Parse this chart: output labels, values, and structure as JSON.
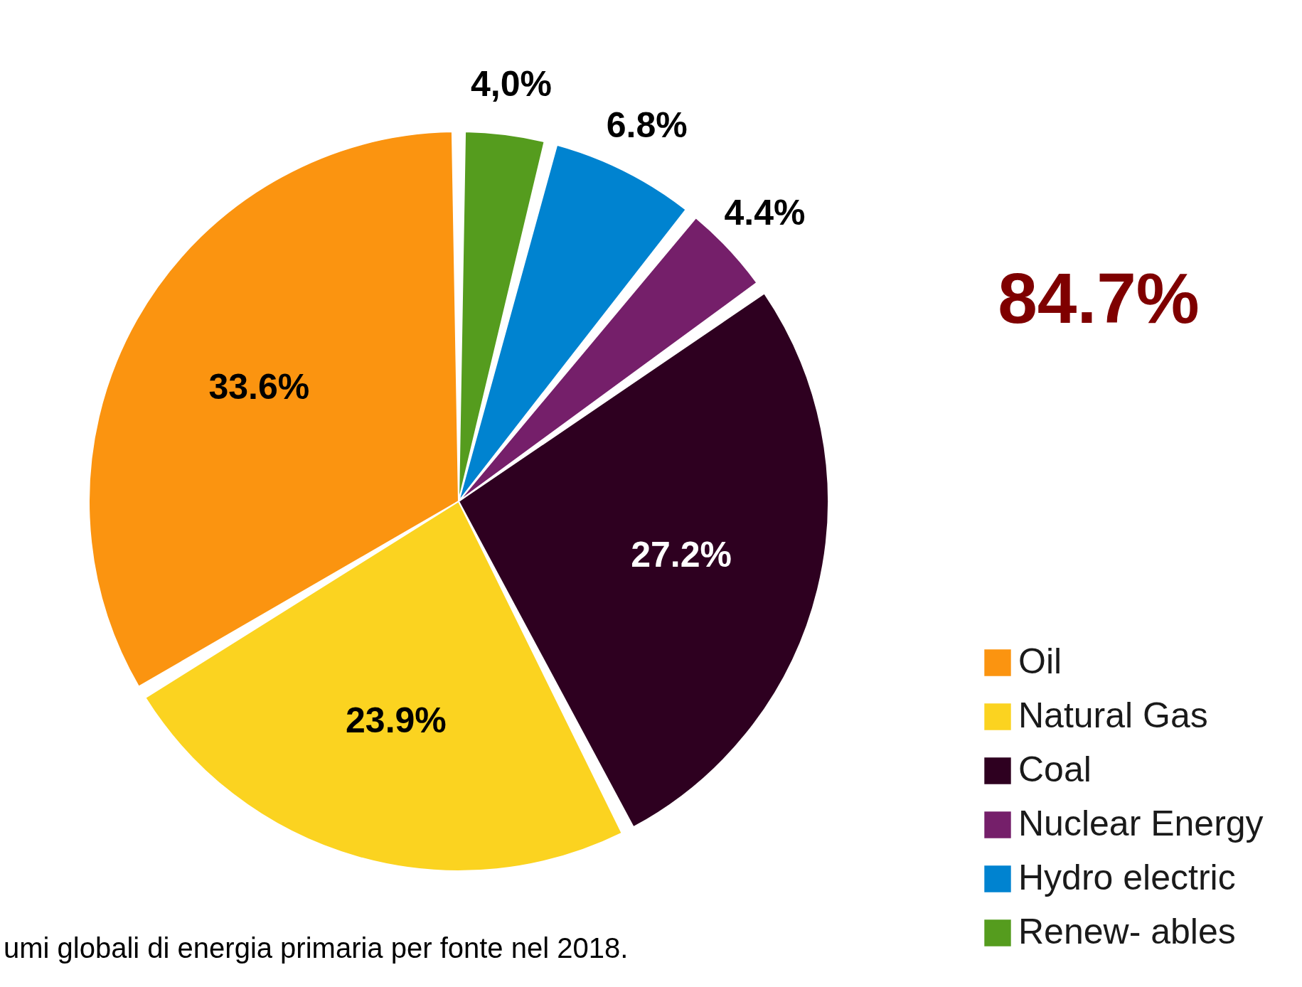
{
  "chart_data": {
    "type": "pie",
    "categories": [
      "Oil",
      "Natural Gas",
      "Coal",
      "Nuclear Energy",
      "Hydro electric",
      "Renew- ables"
    ],
    "values": [
      33.6,
      23.9,
      27.2,
      4.4,
      6.8,
      4.0
    ],
    "colors": [
      "#fb9410",
      "#fbd320",
      "#2e0020",
      "#751f6a",
      "#0083d0",
      "#559c1e"
    ],
    "value_labels": [
      "33.6%",
      "23.9%",
      "27.2%",
      "4.4%",
      "6.8%",
      "4,0%"
    ],
    "legend": "bottom right",
    "annotations": [
      "84.7%",
      "umi globali di energia primaria per fonte nel 2018."
    ]
  }
}
